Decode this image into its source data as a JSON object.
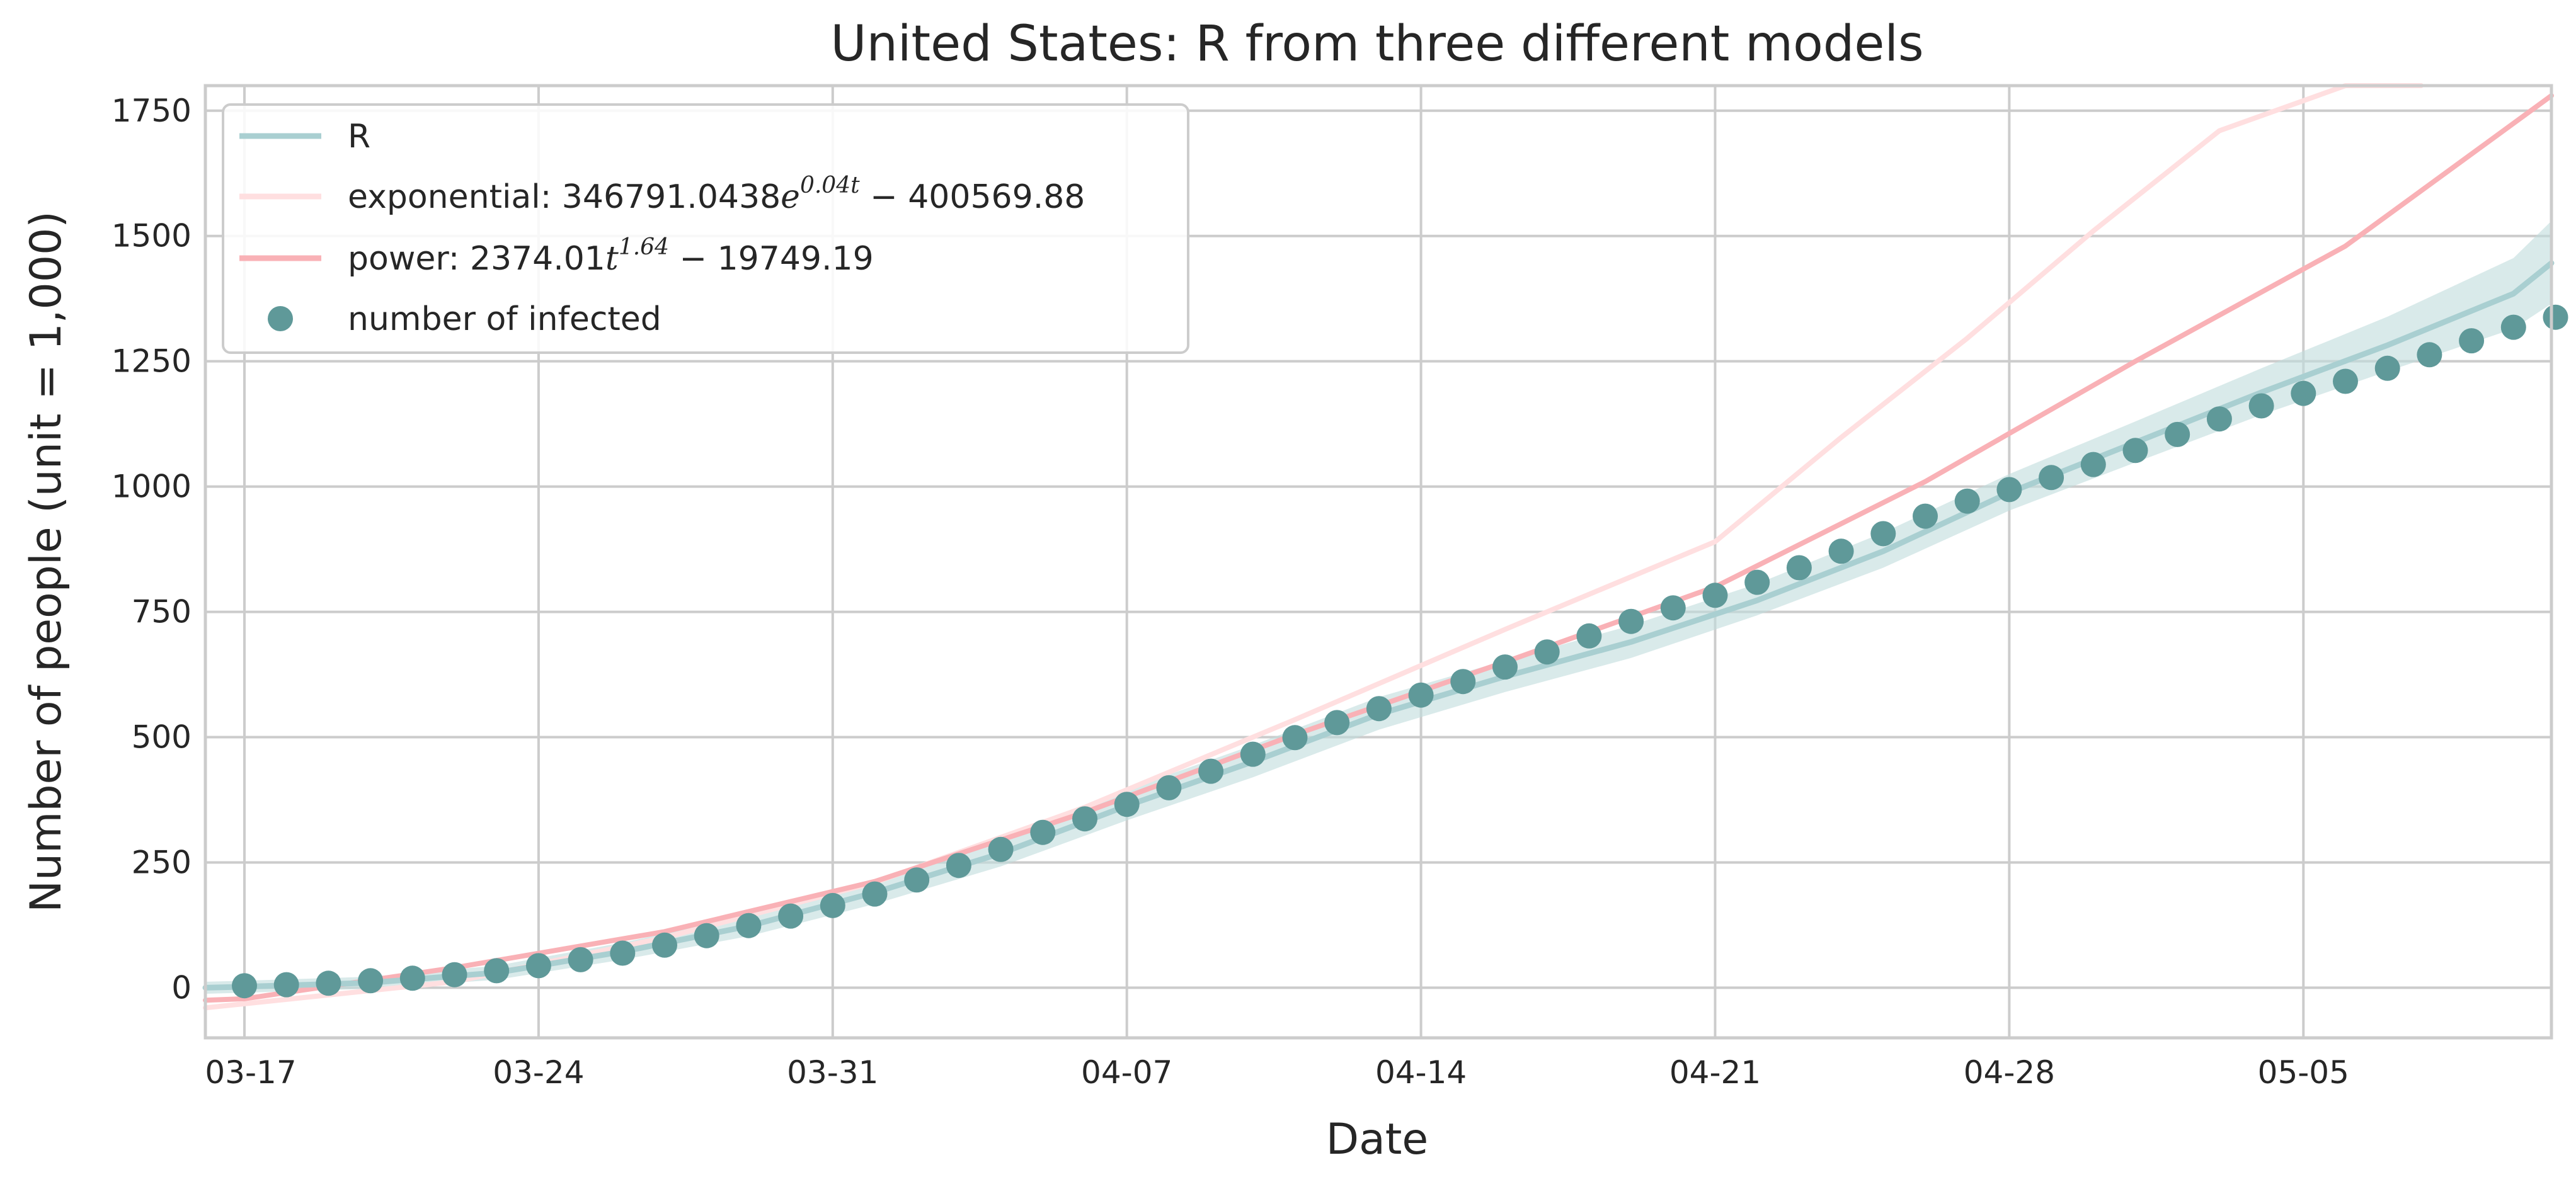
{
  "chart_data": {
    "type": "line",
    "title": "United States: R from three different models",
    "xlabel": "Date",
    "ylabel": "Number of people (unit = 1,000)",
    "x_ticks": [
      "03-17",
      "03-24",
      "03-31",
      "04-07",
      "04-14",
      "04-21",
      "04-28",
      "05-05"
    ],
    "x_range_days": [
      -1,
      55
    ],
    "ylim": [
      -100,
      1800
    ],
    "y_ticks": [
      0,
      250,
      500,
      750,
      1000,
      1250,
      1500,
      1750
    ],
    "grid": true,
    "legend_position": "top-left",
    "colors": {
      "R": "#a9cfd1",
      "R_band": "#bfdcdc",
      "exponential": "#ffdfe0",
      "power": "#f9b1b6",
      "infected": "#5f9999",
      "grid": "#cccccc",
      "spine": "#cccccc"
    },
    "legend": [
      {
        "key": "R",
        "label": "R"
      },
      {
        "key": "exponential",
        "label_prefix": "exponential: ",
        "coef": "346791.0438",
        "base": "e",
        "exponent": "0.04t",
        "suffix": " − 400569.88"
      },
      {
        "key": "power",
        "label_prefix": "power: ",
        "coef": "2374.01",
        "base": "t",
        "exponent": "1.64",
        "suffix": " − 19749.19"
      },
      {
        "key": "infected",
        "label": "number of infected"
      }
    ],
    "series": [
      {
        "name": "number of infected",
        "kind": "scatter",
        "x_day": [
          0,
          1,
          2,
          3,
          4,
          5,
          6,
          7,
          8,
          9,
          10,
          11,
          12,
          13,
          14,
          15,
          16,
          17,
          18,
          19,
          20,
          21,
          22,
          23,
          24,
          25,
          26,
          27,
          28,
          29,
          30,
          31,
          32,
          33,
          34,
          35,
          36,
          37,
          38,
          39,
          40,
          41,
          42,
          43,
          44,
          45,
          46,
          47,
          48,
          49,
          50,
          51,
          52,
          53,
          54,
          55
        ],
        "y": [
          4,
          6,
          9,
          14,
          19,
          26,
          34,
          44,
          56,
          69,
          85,
          104,
          124,
          143,
          164,
          187,
          215,
          244,
          276,
          310,
          337,
          366,
          399,
          432,
          466,
          499,
          529,
          557,
          584,
          611,
          640,
          670,
          702,
          731,
          758,
          783,
          809,
          838,
          871,
          906,
          941,
          971,
          994,
          1018,
          1044,
          1072,
          1104,
          1135,
          1161,
          1186,
          1210,
          1236,
          1263,
          1291,
          1318,
          1338
        ]
      },
      {
        "name": "R",
        "kind": "line",
        "x_day": [
          -1,
          0,
          3,
          6,
          9,
          12,
          15,
          18,
          21,
          24,
          27,
          30,
          33,
          36,
          39,
          42,
          45,
          48,
          51,
          54,
          55.8
        ],
        "y": [
          0,
          2,
          10,
          30,
          72,
          123,
          190,
          268,
          363,
          451,
          546,
          621,
          690,
          773,
          871,
          988,
          1088,
          1188,
          1282,
          1385,
          1446
        ],
        "band_upper": [
          12,
          14,
          22,
          44,
          90,
          145,
          215,
          298,
          396,
          484,
          580,
          653,
          723,
          806,
          908,
          1025,
          1130,
          1236,
          1339,
          1456,
          1530
        ],
        "band_lower": [
          -12,
          -10,
          -2,
          16,
          56,
          103,
          167,
          242,
          334,
          420,
          515,
          590,
          658,
          743,
          838,
          952,
          1048,
          1143,
          1230,
          1315,
          1365
        ]
      },
      {
        "name": "exponential",
        "kind": "line",
        "formula": {
          "a": 346791.0438,
          "k": 0.04,
          "c": -400569.88,
          "unit": 1000,
          "t_day_offset": 0
        },
        "x_day": [
          -1,
          0,
          5,
          10,
          15,
          20,
          25,
          30,
          35,
          38,
          41,
          44,
          47,
          50,
          51.8
        ],
        "y": [
          -40,
          -32,
          12,
          100,
          210,
          360,
          535,
          715,
          890,
          1098,
          1296,
          1510,
          1710,
          1810,
          1810
        ]
      },
      {
        "name": "power",
        "kind": "line",
        "x_day": [
          -1,
          0,
          5,
          10,
          15,
          20,
          25,
          30,
          35,
          40,
          45,
          50,
          55.8
        ],
        "y": [
          -25,
          -22,
          40,
          112,
          212,
          350,
          505,
          650,
          800,
          1010,
          1250,
          1480,
          1780
        ]
      }
    ]
  }
}
